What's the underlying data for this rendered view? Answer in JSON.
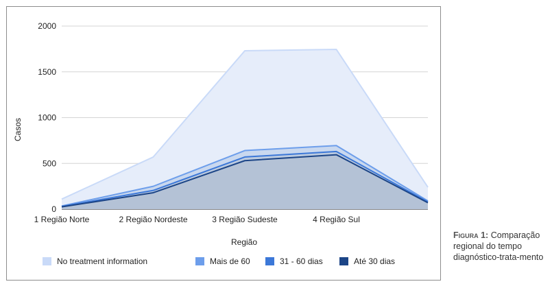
{
  "chart_data": {
    "type": "area",
    "xlabel": "Região",
    "ylabel": "Casos",
    "ylim": [
      0,
      2000
    ],
    "yticks": [
      "0",
      "500",
      "1000",
      "1500",
      "2000"
    ],
    "categories": [
      "1 Região Norte",
      "2 Região Nordeste",
      "3 Região Sudeste",
      "4 Região Sul",
      ""
    ],
    "series": [
      {
        "name": "No treatment information",
        "values": [
          110,
          570,
          1730,
          1745,
          240
        ],
        "color": "#c9daf8",
        "fill": "#e6edfa"
      },
      {
        "name": "Mais de 60",
        "values": [
          35,
          250,
          640,
          695,
          90
        ],
        "color": "#6d9eeb",
        "fill": "#c9d8ef"
      },
      {
        "name": "31 - 60 dias",
        "values": [
          30,
          205,
          570,
          630,
          80
        ],
        "color": "#3c78d8",
        "fill": "#bccbe0"
      },
      {
        "name": "Até 30 dias",
        "values": [
          25,
          180,
          530,
          595,
          70
        ],
        "color": "#1c4587",
        "fill": "#b4c2d6"
      }
    ],
    "legend_position": "bottom",
    "grid": true
  },
  "caption": {
    "label": "Figura 1:",
    "text": "Comparação regional do tempo diagnóstico-trata-mento"
  }
}
